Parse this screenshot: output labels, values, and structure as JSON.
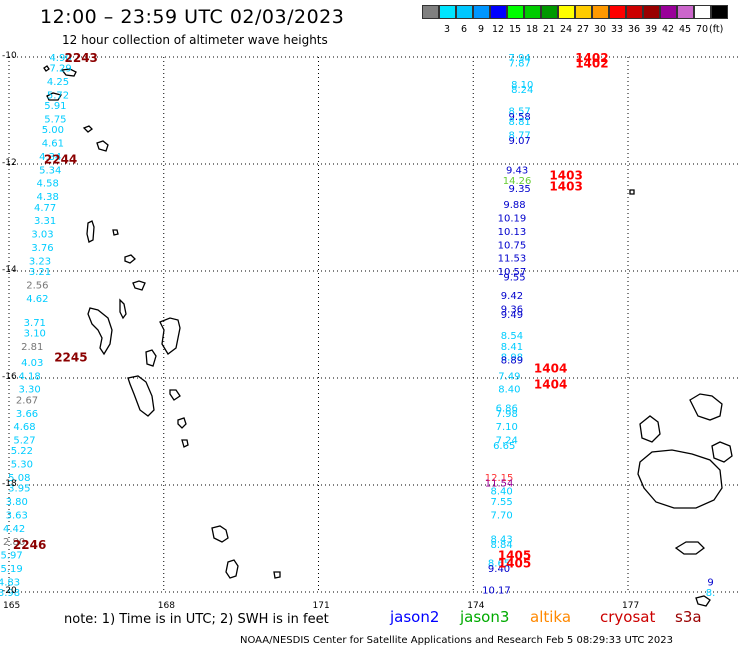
{
  "header": {
    "title": "12:00 – 23:59 UTC 02/03/2023",
    "subtitle": "12 hour collection of altimeter wave heights"
  },
  "color_scale": {
    "unit": "(ft)",
    "swatches": [
      {
        "color": "#808080",
        "label": ""
      },
      {
        "color": "#00e5ff",
        "label": "3"
      },
      {
        "color": "#00c8ff",
        "label": "6"
      },
      {
        "color": "#0096ff",
        "label": "9"
      },
      {
        "color": "#0000ff",
        "label": "12"
      },
      {
        "color": "#00ff00",
        "label": "15"
      },
      {
        "color": "#00cc00",
        "label": "18"
      },
      {
        "color": "#009900",
        "label": "21"
      },
      {
        "color": "#ffff00",
        "label": "24"
      },
      {
        "color": "#ffcc00",
        "label": "27"
      },
      {
        "color": "#ff9900",
        "label": "30"
      },
      {
        "color": "#ff0000",
        "label": "33"
      },
      {
        "color": "#cc0000",
        "label": "36"
      },
      {
        "color": "#990000",
        "label": "39"
      },
      {
        "color": "#990099",
        "label": "42"
      },
      {
        "color": "#cc66cc",
        "label": "45"
      },
      {
        "color": "#ffffff",
        "label": "70"
      },
      {
        "color": "#000000",
        "label": ""
      }
    ]
  },
  "axes": {
    "lon_ticks": [
      "165",
      "168",
      "171",
      "174",
      "177"
    ],
    "lat_ticks": [
      "-10",
      "-12",
      "-14",
      "-16",
      "-18",
      "-20"
    ]
  },
  "passes": [
    {
      "label": "2243",
      "color": "#8b0000",
      "lon": 166.4,
      "lat": -10.0
    },
    {
      "label": "2244",
      "color": "#8b0000",
      "lon": 166.0,
      "lat": -11.9
    },
    {
      "label": "2245",
      "color": "#8b0000",
      "lon": 166.2,
      "lat": -15.6
    },
    {
      "label": "2246",
      "color": "#8b0000",
      "lon": 165.4,
      "lat": -19.1
    },
    {
      "label": "1402",
      "color": "#ff0000",
      "lon": 176.3,
      "lat": -10.0
    },
    {
      "label": "1402",
      "color": "#ff0000",
      "lon": 176.3,
      "lat": -10.1
    },
    {
      "label": "1403",
      "color": "#ff0000",
      "lon": 175.8,
      "lat": -12.2
    },
    {
      "label": "1403",
      "color": "#ff0000",
      "lon": 175.8,
      "lat": -12.4
    },
    {
      "label": "1404",
      "color": "#ff0000",
      "lon": 175.5,
      "lat": -15.8
    },
    {
      "label": "1404",
      "color": "#ff0000",
      "lon": 175.5,
      "lat": -16.1
    },
    {
      "label": "1405",
      "color": "#ff0000",
      "lon": 174.8,
      "lat": -19.3
    },
    {
      "label": "1405",
      "color": "#ff0000",
      "lon": 174.8,
      "lat": -19.45
    }
  ],
  "track_west": [
    {
      "v": "4.90",
      "c": "#00ccff",
      "lon": 166.0,
      "lat": -10.0
    },
    {
      "v": "7.29",
      "c": "#00ccff",
      "lon": 166.0,
      "lat": -10.2
    },
    {
      "v": "4.25",
      "c": "#00ccff",
      "lon": 165.95,
      "lat": -10.45
    },
    {
      "v": "5.72",
      "c": "#00ccff",
      "lon": 165.95,
      "lat": -10.7
    },
    {
      "v": "5.91",
      "c": "#00ccff",
      "lon": 165.9,
      "lat": -10.9
    },
    {
      "v": "5.75",
      "c": "#00ccff",
      "lon": 165.9,
      "lat": -11.15
    },
    {
      "v": "5.00",
      "c": "#00ccff",
      "lon": 165.85,
      "lat": -11.35
    },
    {
      "v": "4.61",
      "c": "#00ccff",
      "lon": 165.85,
      "lat": -11.6
    },
    {
      "v": "4.34",
      "c": "#00ccff",
      "lon": 165.8,
      "lat": -11.85
    },
    {
      "v": "5.34",
      "c": "#00ccff",
      "lon": 165.8,
      "lat": -12.1
    },
    {
      "v": "4.58",
      "c": "#00ccff",
      "lon": 165.75,
      "lat": -12.35
    },
    {
      "v": "4.38",
      "c": "#00ccff",
      "lon": 165.75,
      "lat": -12.6
    },
    {
      "v": "4.77",
      "c": "#00ccff",
      "lon": 165.7,
      "lat": -12.8
    },
    {
      "v": "3.31",
      "c": "#00ccff",
      "lon": 165.7,
      "lat": -13.05
    },
    {
      "v": "3.03",
      "c": "#00ccff",
      "lon": 165.65,
      "lat": -13.3
    },
    {
      "v": "3.76",
      "c": "#00ccff",
      "lon": 165.65,
      "lat": -13.55
    },
    {
      "v": "3.23",
      "c": "#00ccff",
      "lon": 165.6,
      "lat": -13.8
    },
    {
      "v": "3.21",
      "c": "#00ccff",
      "lon": 165.6,
      "lat": -14.0
    },
    {
      "v": "2.56",
      "c": "#777777",
      "lon": 165.55,
      "lat": -14.25
    },
    {
      "v": "4.62",
      "c": "#00ccff",
      "lon": 165.55,
      "lat": -14.5
    },
    {
      "v": "3.71",
      "c": "#00ccff",
      "lon": 165.5,
      "lat": -14.95
    },
    {
      "v": "3.10",
      "c": "#00ccff",
      "lon": 165.5,
      "lat": -15.15
    },
    {
      "v": "2.81",
      "c": "#777777",
      "lon": 165.45,
      "lat": -15.4
    },
    {
      "v": "4.03",
      "c": "#00ccff",
      "lon": 165.45,
      "lat": -15.7
    },
    {
      "v": "4.18",
      "c": "#00ccff",
      "lon": 165.4,
      "lat": -15.95
    },
    {
      "v": "3.30",
      "c": "#00ccff",
      "lon": 165.4,
      "lat": -16.2
    },
    {
      "v": "2.67",
      "c": "#777777",
      "lon": 165.35,
      "lat": -16.4
    },
    {
      "v": "3.66",
      "c": "#00ccff",
      "lon": 165.35,
      "lat": -16.65
    },
    {
      "v": "4.68",
      "c": "#00ccff",
      "lon": 165.3,
      "lat": -16.9
    },
    {
      "v": "5.27",
      "c": "#00ccff",
      "lon": 165.3,
      "lat": -17.15
    },
    {
      "v": "5.22",
      "c": "#00ccff",
      "lon": 165.25,
      "lat": -17.35
    },
    {
      "v": "5.30",
      "c": "#00ccff",
      "lon": 165.25,
      "lat": -17.6
    },
    {
      "v": "5.08",
      "c": "#00ccff",
      "lon": 165.2,
      "lat": -17.85
    },
    {
      "v": "3.95",
      "c": "#00ccff",
      "lon": 165.2,
      "lat": -18.05
    },
    {
      "v": "3.80",
      "c": "#00ccff",
      "lon": 165.15,
      "lat": -18.3
    },
    {
      "v": "3.63",
      "c": "#00ccff",
      "lon": 165.15,
      "lat": -18.55
    },
    {
      "v": "4.42",
      "c": "#00ccff",
      "lon": 165.1,
      "lat": -18.8
    },
    {
      "v": "2.80",
      "c": "#777777",
      "lon": 165.1,
      "lat": -19.05
    },
    {
      "v": "5.97",
      "c": "#00ccff",
      "lon": 165.05,
      "lat": -19.3
    },
    {
      "v": "5.19",
      "c": "#00ccff",
      "lon": 165.05,
      "lat": -19.55
    },
    {
      "v": "4.83",
      "c": "#00ccff",
      "lon": 165.0,
      "lat": -19.8
    },
    {
      "v": "3.98",
      "c": "#00ccff",
      "lon": 165.0,
      "lat": -20.0
    }
  ],
  "track_east": [
    {
      "v": "7.94",
      "c": "#00ccff",
      "lon": 174.9,
      "lat": -10.0
    },
    {
      "v": "7.87",
      "c": "#00ccff",
      "lon": 174.9,
      "lat": -10.1
    },
    {
      "v": "8.10",
      "c": "#00ccff",
      "lon": 174.95,
      "lat": -10.5
    },
    {
      "v": "8.24",
      "c": "#00ccff",
      "lon": 174.95,
      "lat": -10.6
    },
    {
      "v": "8.57",
      "c": "#00ccff",
      "lon": 174.9,
      "lat": -11.0
    },
    {
      "v": "9.58",
      "c": "#0000cc",
      "lon": 174.9,
      "lat": -11.1
    },
    {
      "v": "8.81",
      "c": "#00ccff",
      "lon": 174.9,
      "lat": -11.2
    },
    {
      "v": "8.77",
      "c": "#00ccff",
      "lon": 174.9,
      "lat": -11.45
    },
    {
      "v": "9.07",
      "c": "#0000cc",
      "lon": 174.9,
      "lat": -11.55
    },
    {
      "v": "9.43",
      "c": "#0000cc",
      "lon": 174.85,
      "lat": -12.1
    },
    {
      "v": "14.26",
      "c": "#66cc33",
      "lon": 174.85,
      "lat": -12.3
    },
    {
      "v": "9.35",
      "c": "#0000cc",
      "lon": 174.9,
      "lat": -12.45
    },
    {
      "v": "9.88",
      "c": "#0000cc",
      "lon": 174.8,
      "lat": -12.75
    },
    {
      "v": "10.19",
      "c": "#0000cc",
      "lon": 174.75,
      "lat": -13.0
    },
    {
      "v": "10.13",
      "c": "#0000cc",
      "lon": 174.75,
      "lat": -13.25
    },
    {
      "v": "10.75",
      "c": "#0000cc",
      "lon": 174.75,
      "lat": -13.5
    },
    {
      "v": "11.53",
      "c": "#0000cc",
      "lon": 174.75,
      "lat": -13.75
    },
    {
      "v": "10.57",
      "c": "#0000cc",
      "lon": 174.75,
      "lat": -14.0
    },
    {
      "v": "9.55",
      "c": "#0000cc",
      "lon": 174.8,
      "lat": -14.1
    },
    {
      "v": "9.42",
      "c": "#0000cc",
      "lon": 174.75,
      "lat": -14.45
    },
    {
      "v": "9.36",
      "c": "#0000cc",
      "lon": 174.75,
      "lat": -14.7
    },
    {
      "v": "9.49",
      "c": "#0000cc",
      "lon": 174.75,
      "lat": -14.8
    },
    {
      "v": "8.54",
      "c": "#00ccff",
      "lon": 174.75,
      "lat": -15.2
    },
    {
      "v": "8.41",
      "c": "#00ccff",
      "lon": 174.75,
      "lat": -15.4
    },
    {
      "v": "8.98",
      "c": "#00ccff",
      "lon": 174.75,
      "lat": -15.6
    },
    {
      "v": "8.89",
      "c": "#0000cc",
      "lon": 174.75,
      "lat": -15.65
    },
    {
      "v": "7.49",
      "c": "#00ccff",
      "lon": 174.7,
      "lat": -15.95
    },
    {
      "v": "8.40",
      "c": "#00ccff",
      "lon": 174.7,
      "lat": -16.2
    },
    {
      "v": "6.86",
      "c": "#00ccff",
      "lon": 174.65,
      "lat": -16.55
    },
    {
      "v": "7.98",
      "c": "#00ccff",
      "lon": 174.65,
      "lat": -16.65
    },
    {
      "v": "7.10",
      "c": "#00ccff",
      "lon": 174.65,
      "lat": -16.9
    },
    {
      "v": "7.24",
      "c": "#00ccff",
      "lon": 174.65,
      "lat": -17.15
    },
    {
      "v": "6.65",
      "c": "#00ccff",
      "lon": 174.6,
      "lat": -17.25
    },
    {
      "v": "12.15",
      "c": "#ff3333",
      "lon": 174.5,
      "lat": -17.85
    },
    {
      "v": "11.54",
      "c": "#990099",
      "lon": 174.5,
      "lat": -17.95
    },
    {
      "v": "8.40",
      "c": "#00ccff",
      "lon": 174.55,
      "lat": -18.1
    },
    {
      "v": "7.55",
      "c": "#00ccff",
      "lon": 174.55,
      "lat": -18.3
    },
    {
      "v": "7.70",
      "c": "#00ccff",
      "lon": 174.55,
      "lat": -18.55
    },
    {
      "v": "8.43",
      "c": "#00ccff",
      "lon": 174.55,
      "lat": -19.0
    },
    {
      "v": "8.84",
      "c": "#00ccff",
      "lon": 174.55,
      "lat": -19.1
    },
    {
      "v": "8.65",
      "c": "#00ccff",
      "lon": 174.5,
      "lat": -19.45
    },
    {
      "v": "9.40",
      "c": "#0000cc",
      "lon": 174.5,
      "lat": -19.55
    },
    {
      "v": "10.17",
      "c": "#0000cc",
      "lon": 174.45,
      "lat": -19.95
    }
  ],
  "edge_labels": [
    {
      "v": "9",
      "c": "#0000cc",
      "lon": 178.6,
      "lat": -19.8
    },
    {
      "v": "8.",
      "c": "#00ccff",
      "lon": 178.6,
      "lat": -20.0
    }
  ],
  "note": "note:  1) Time is in UTC; 2) SWH is in feet",
  "satellites": [
    {
      "name": "jason2",
      "color": "#0000ff"
    },
    {
      "name": "jason3",
      "color": "#00aa00"
    },
    {
      "name": "altika",
      "color": "#ff8800"
    },
    {
      "name": "cryosat",
      "color": "#cc0000"
    },
    {
      "name": "s3a",
      "color": "#990000"
    }
  ],
  "footer": "NOAA/NESDIS Center for Satellite Applications and Research    Feb  5 08:29:33 UTC 2023"
}
